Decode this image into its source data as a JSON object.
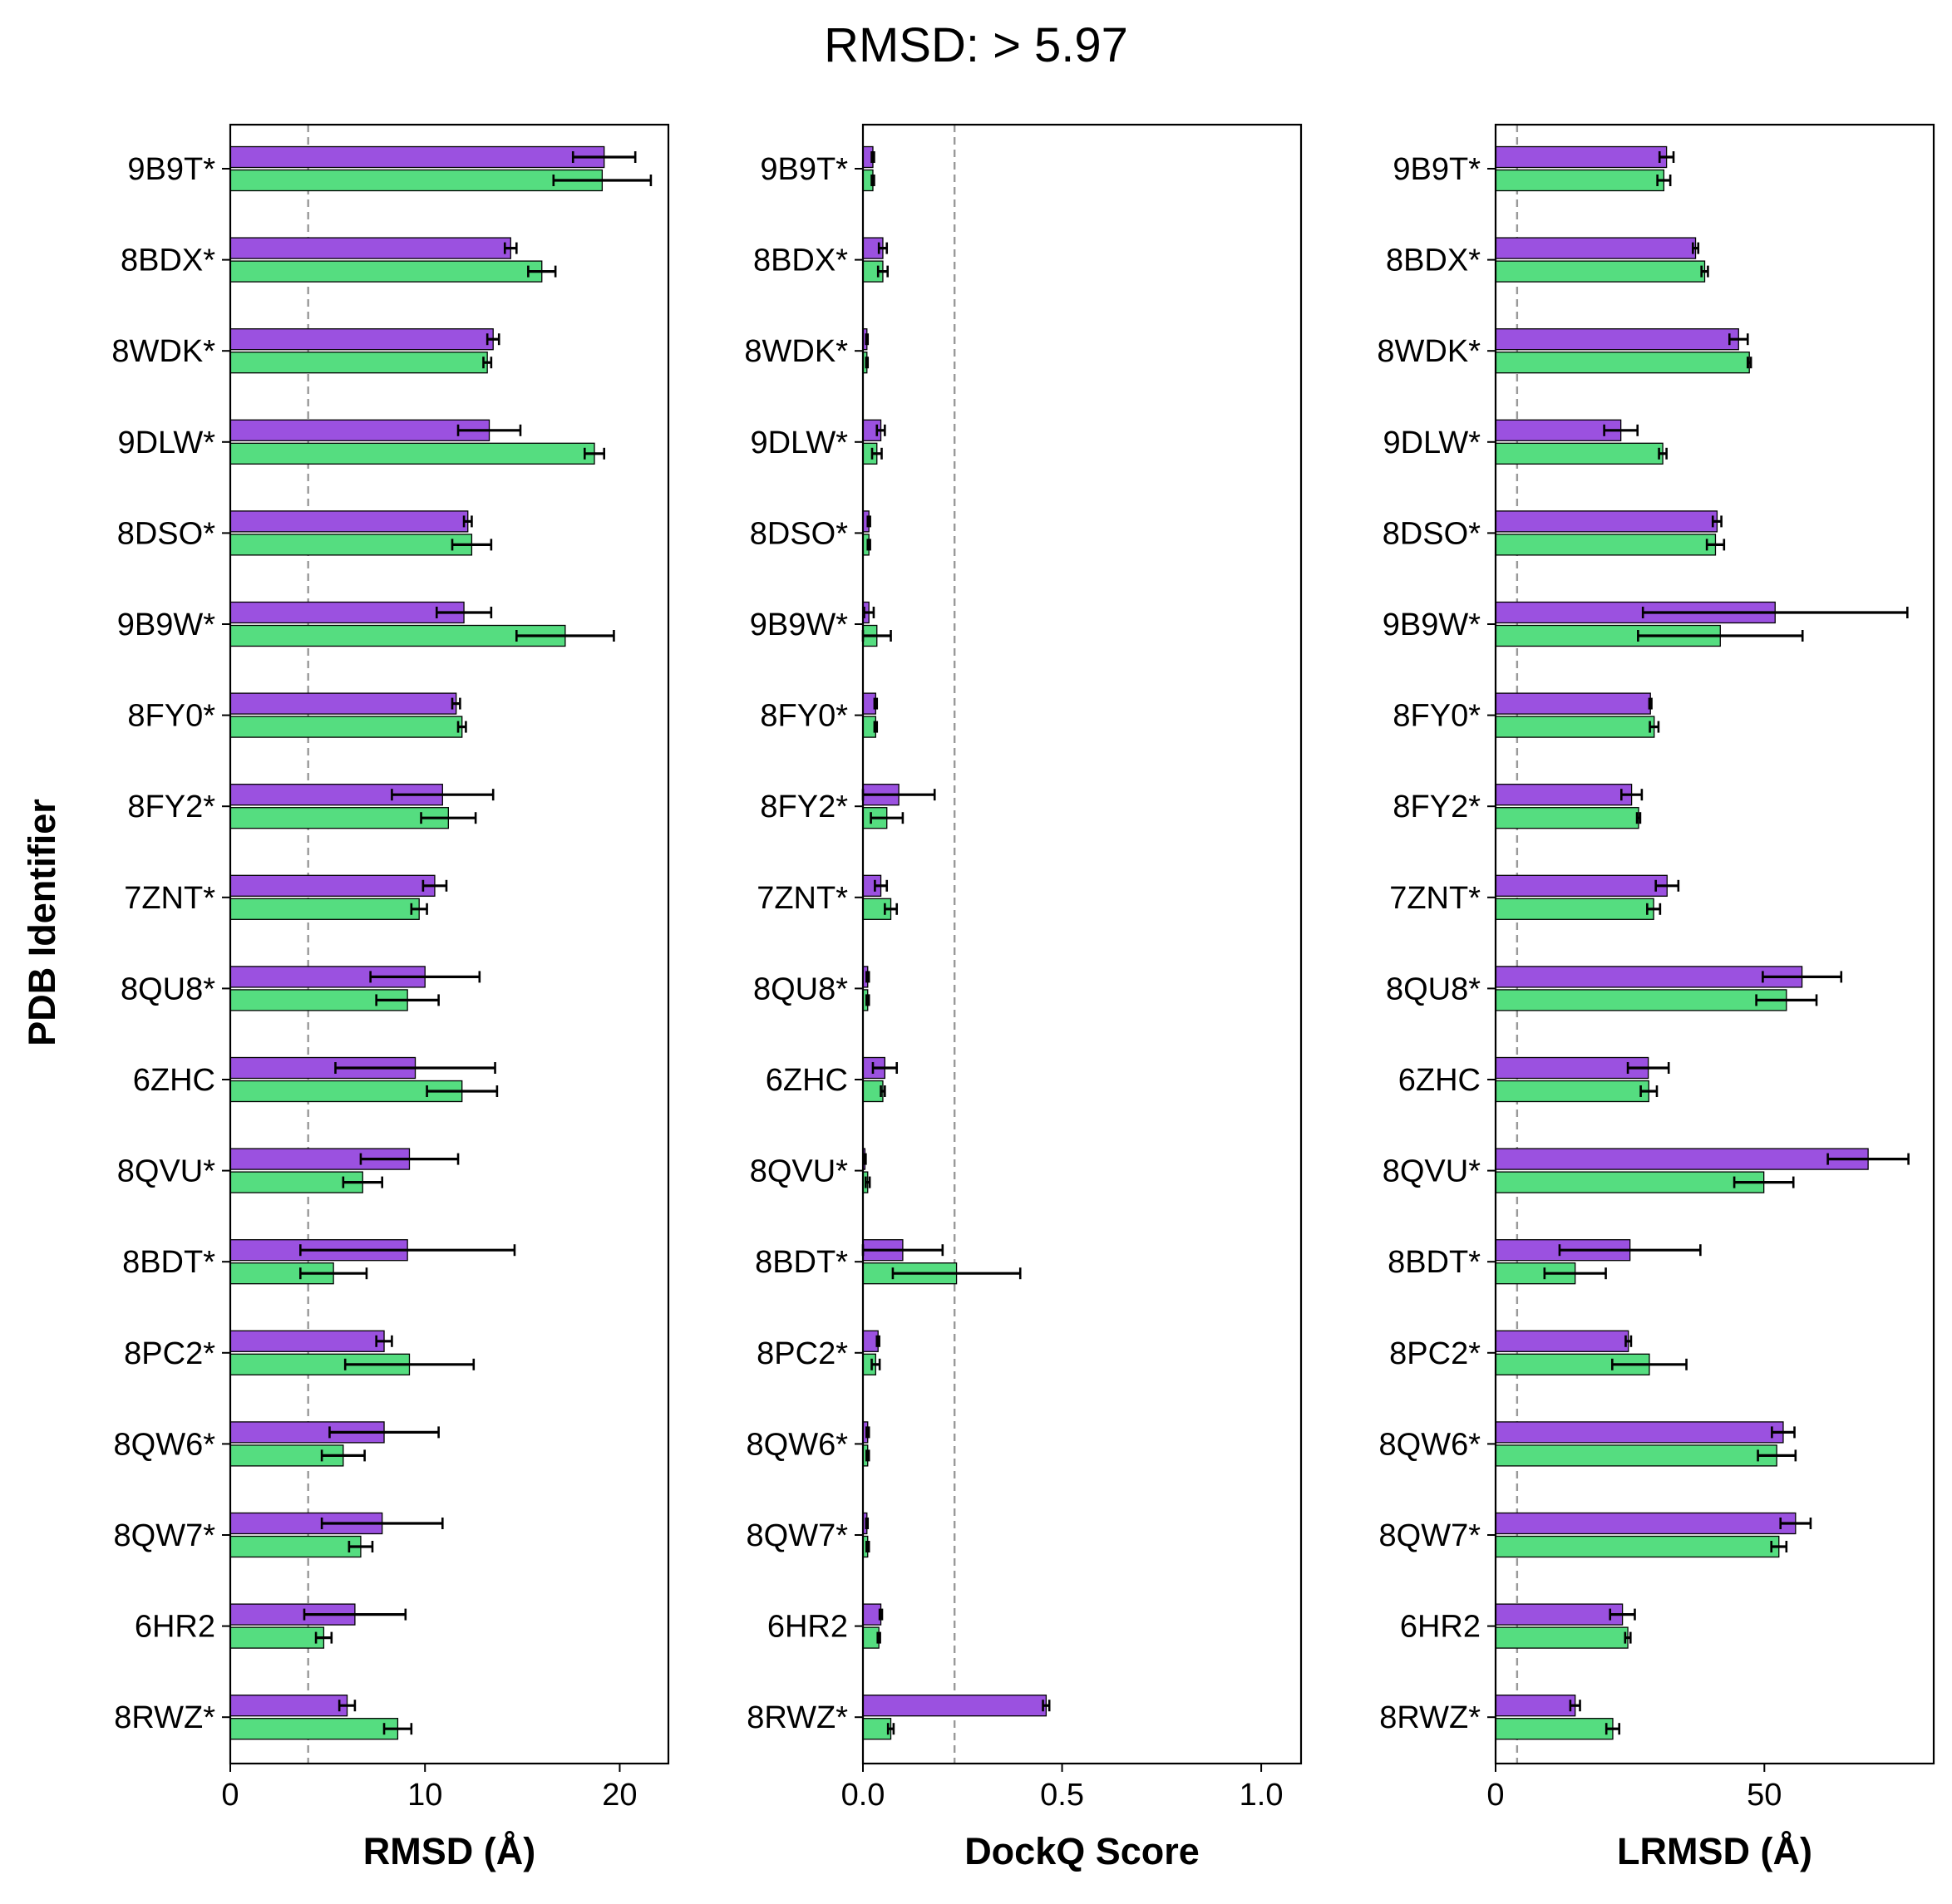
{
  "title": "RMSD: > 5.97",
  "chart_data": {
    "type": "bar",
    "orientation": "horizontal",
    "ylabel": "PDB Identifier",
    "categories": [
      "9B9T*",
      "8BDX*",
      "8WDK*",
      "9DLW*",
      "8DSO*",
      "9B9W*",
      "8FY0*",
      "8FY2*",
      "7ZNT*",
      "8QU8*",
      "6ZHC",
      "8QVU*",
      "8BDT*",
      "8PC2*",
      "8QW6*",
      "8QW7*",
      "6HR2",
      "8RWZ*"
    ],
    "series_colors": [
      "#9b51e0",
      "#55dd80"
    ],
    "panels": [
      {
        "xlabel": "RMSD (Å)",
        "xlim": [
          0,
          22.5
        ],
        "xticks": [
          0,
          10,
          20
        ],
        "reference_line": 4.0,
        "series": [
          {
            "values": [
              19.2,
              14.4,
              13.5,
              13.3,
              12.2,
              12.0,
              11.6,
              10.9,
              10.5,
              10.0,
              9.5,
              9.2,
              9.1,
              7.9,
              7.9,
              7.8,
              6.4,
              6.0
            ],
            "errors": [
              1.6,
              0.3,
              0.3,
              1.6,
              0.2,
              1.4,
              0.2,
              2.6,
              0.6,
              2.8,
              4.1,
              2.5,
              5.5,
              0.4,
              2.8,
              3.1,
              2.6,
              0.4
            ]
          },
          {
            "values": [
              19.1,
              16.0,
              13.2,
              18.7,
              12.4,
              17.2,
              11.9,
              11.2,
              9.7,
              9.1,
              11.9,
              6.8,
              5.3,
              9.2,
              5.8,
              6.7,
              4.8,
              8.6
            ],
            "errors": [
              2.5,
              0.7,
              0.2,
              0.5,
              1.0,
              2.5,
              0.2,
              1.4,
              0.4,
              1.6,
              1.8,
              1.0,
              1.7,
              3.3,
              1.1,
              0.6,
              0.4,
              0.7
            ]
          }
        ]
      },
      {
        "xlabel": "DockQ Score",
        "xlim": [
          0,
          1.1
        ],
        "xticks": [
          0.0,
          0.5,
          1.0
        ],
        "reference_line": 0.23,
        "series": [
          {
            "values": [
              0.025,
              0.05,
              0.01,
              0.045,
              0.015,
              0.015,
              0.032,
              0.09,
              0.045,
              0.012,
              0.055,
              0.005,
              0.1,
              0.038,
              0.012,
              0.01,
              0.045,
              0.46
            ],
            "errors": [
              0.003,
              0.01,
              0.002,
              0.01,
              0.003,
              0.012,
              0.003,
              0.09,
              0.015,
              0.003,
              0.03,
              0.002,
              0.1,
              0.003,
              0.003,
              0.002,
              0.003,
              0.008
            ]
          },
          {
            "values": [
              0.025,
              0.05,
              0.01,
              0.035,
              0.015,
              0.035,
              0.032,
              0.06,
              0.07,
              0.012,
              0.05,
              0.012,
              0.235,
              0.032,
              0.012,
              0.012,
              0.04,
              0.07
            ]
          },
          {
            "errors": [
              0.003,
              0.012,
              0.002,
              0.012,
              0.003,
              0.035,
              0.003,
              0.04,
              0.015,
              0.003,
              0.005,
              0.005,
              0.16,
              0.01,
              0.003,
              0.003,
              0.003,
              0.007
            ]
          }
        ]
      },
      {
        "xlabel": "LRMSD (Å)",
        "xlim": [
          0,
          81.5
        ],
        "xticks": [
          0,
          50
        ],
        "reference_line": 4.0,
        "series": [
          {
            "values": [
              31.8,
              37.2,
              45.2,
              23.3,
              41.2,
              52.0,
              28.8,
              25.3,
              31.9,
              57.0,
              28.4,
              69.3,
              25.0,
              24.7,
              53.5,
              55.8,
              23.6,
              14.8
            ],
            "errors": [
              1.3,
              0.5,
              1.7,
              3.1,
              0.8,
              24.6,
              0.2,
              1.9,
              2.1,
              7.3,
              3.8,
              7.5,
              13.1,
              0.5,
              2.1,
              2.8,
              2.3,
              0.9
            ]
          },
          {
            "values": [
              31.3,
              38.9,
              47.2,
              31.1,
              40.9,
              41.8,
              29.5,
              26.6,
              29.4,
              54.1,
              28.5,
              49.9,
              14.8,
              28.6,
              52.3,
              52.7,
              24.6,
              21.8
            ],
            "errors": [
              1.2,
              0.6,
              0.3,
              0.7,
              1.6,
              15.3,
              0.8,
              0.3,
              1.2,
              5.6,
              1.5,
              5.5,
              5.7,
              6.9,
              3.5,
              1.4,
              0.5,
              1.2
            ]
          }
        ]
      }
    ]
  }
}
